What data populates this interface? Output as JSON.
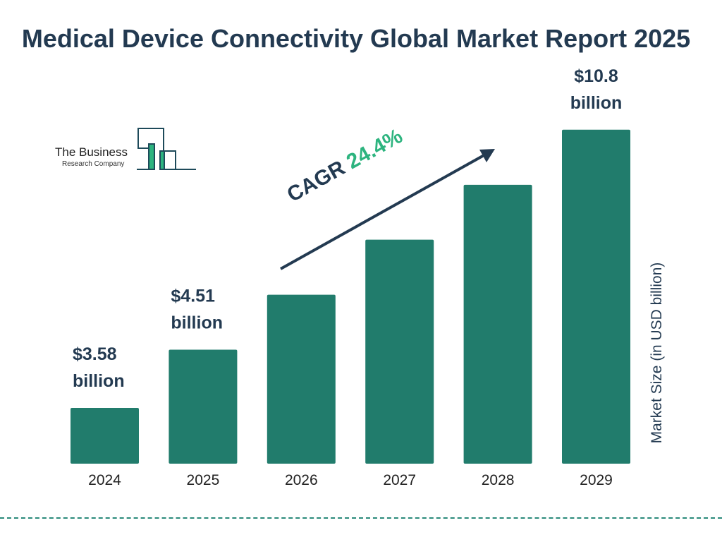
{
  "title": "Medical Device Connectivity Global Market Report 2025",
  "logo": {
    "line1": "The Business",
    "line2": "Research Company"
  },
  "cagr": {
    "label": "CAGR",
    "value": "24.4%"
  },
  "colors": {
    "bar": "#217c6c",
    "text": "#233a51",
    "accent": "#2db47f"
  },
  "chart_data": {
    "type": "bar",
    "title": "Medical Device Connectivity Global Market Report 2025",
    "categories": [
      "2024",
      "2025",
      "2026",
      "2027",
      "2028",
      "2029"
    ],
    "values": [
      3.58,
      4.51,
      5.61,
      6.98,
      8.68,
      10.8
    ],
    "data_labels": [
      "$3.58\nbillion",
      "$4.51\nbillion",
      "",
      "",
      "",
      "$10.8\nbillion"
    ],
    "xlabel": "",
    "ylabel": "Market Size (in USD billion)",
    "y_scale": "log",
    "grid": false,
    "legend": "none"
  }
}
